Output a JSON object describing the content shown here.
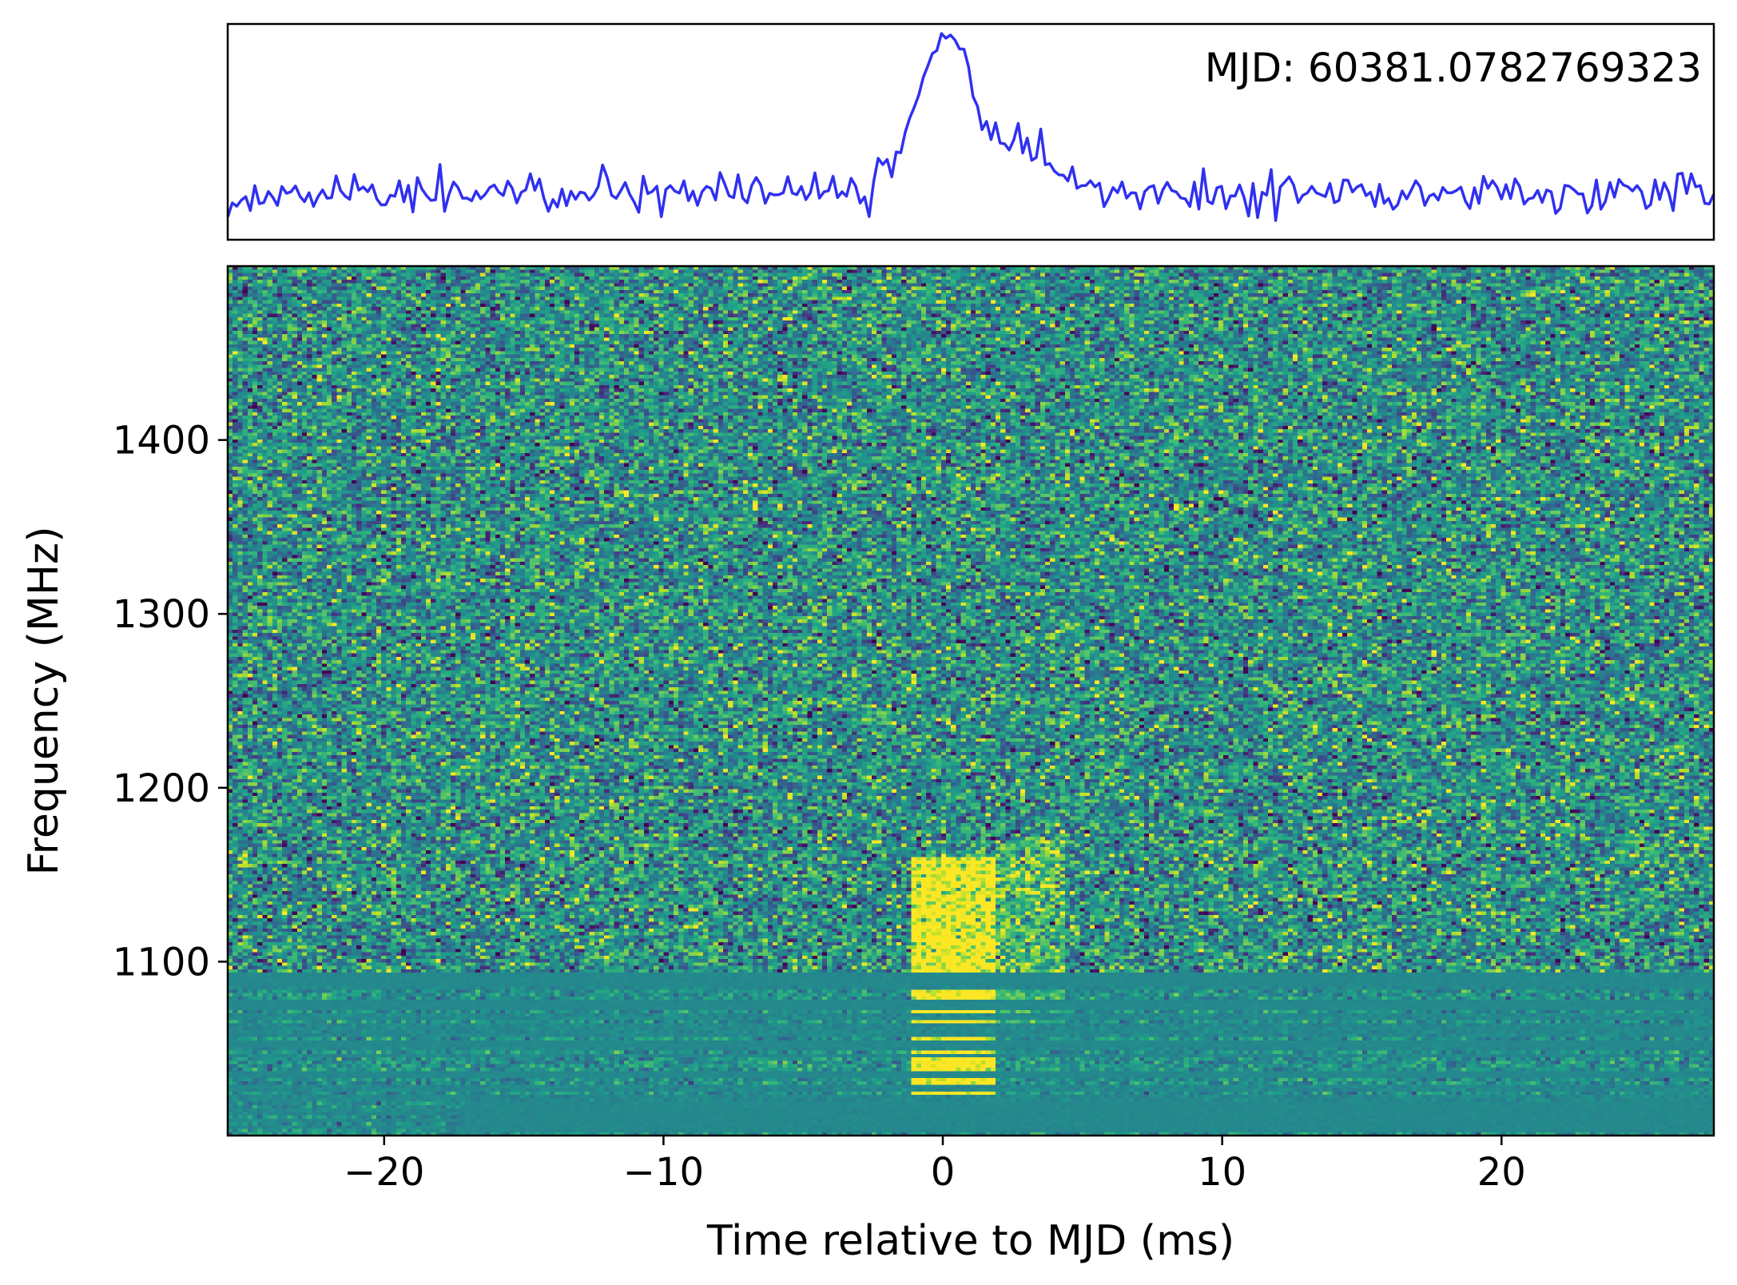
{
  "chart_data": [
    {
      "type": "line",
      "panel": "profile",
      "annotation": "MJD: 60381.0782769323",
      "x_unit": "ms",
      "xlim": [
        -25.6,
        27.6
      ],
      "peak_time_ms": 0.0,
      "peak_value": 1.0,
      "baseline": 0.2,
      "noise_std": 0.05,
      "shape_points": [
        {
          "x": -2.5,
          "y": 0.25
        },
        {
          "x": -1.5,
          "y": 0.4
        },
        {
          "x": -0.8,
          "y": 0.75
        },
        {
          "x": 0.0,
          "y": 1.0
        },
        {
          "x": 0.8,
          "y": 0.9
        },
        {
          "x": 1.3,
          "y": 0.55
        },
        {
          "x": 2.5,
          "y": 0.45
        },
        {
          "x": 3.5,
          "y": 0.42
        },
        {
          "x": 4.2,
          "y": 0.3
        },
        {
          "x": 5.5,
          "y": 0.22
        }
      ],
      "line_color": "#3030f0",
      "show_axes_ticks": false
    },
    {
      "type": "heatmap",
      "panel": "dynamic-spectrum",
      "xlabel": "Time relative to MJD (ms)",
      "ylabel": "Frequency (MHz)",
      "xlim": [
        -25.6,
        27.6
      ],
      "ylim": [
        1000,
        1500
      ],
      "x_ticks": [
        -20,
        -10,
        0,
        10,
        20
      ],
      "y_ticks": [
        1100,
        1200,
        1300,
        1400
      ],
      "colormap": "viridis",
      "burst": {
        "time_start_ms": -1.2,
        "time_end_ms": 1.8,
        "freq_low_mhz": 1020,
        "freq_high_mhz": 1160,
        "tail_time_end_ms": 4.3
      },
      "flagged_bands_mhz": [
        [
          1086,
          1094
        ],
        [
          1072,
          1078
        ],
        [
          1050,
          1055
        ],
        [
          1033,
          1037
        ],
        [
          1002,
          1020
        ]
      ]
    }
  ]
}
